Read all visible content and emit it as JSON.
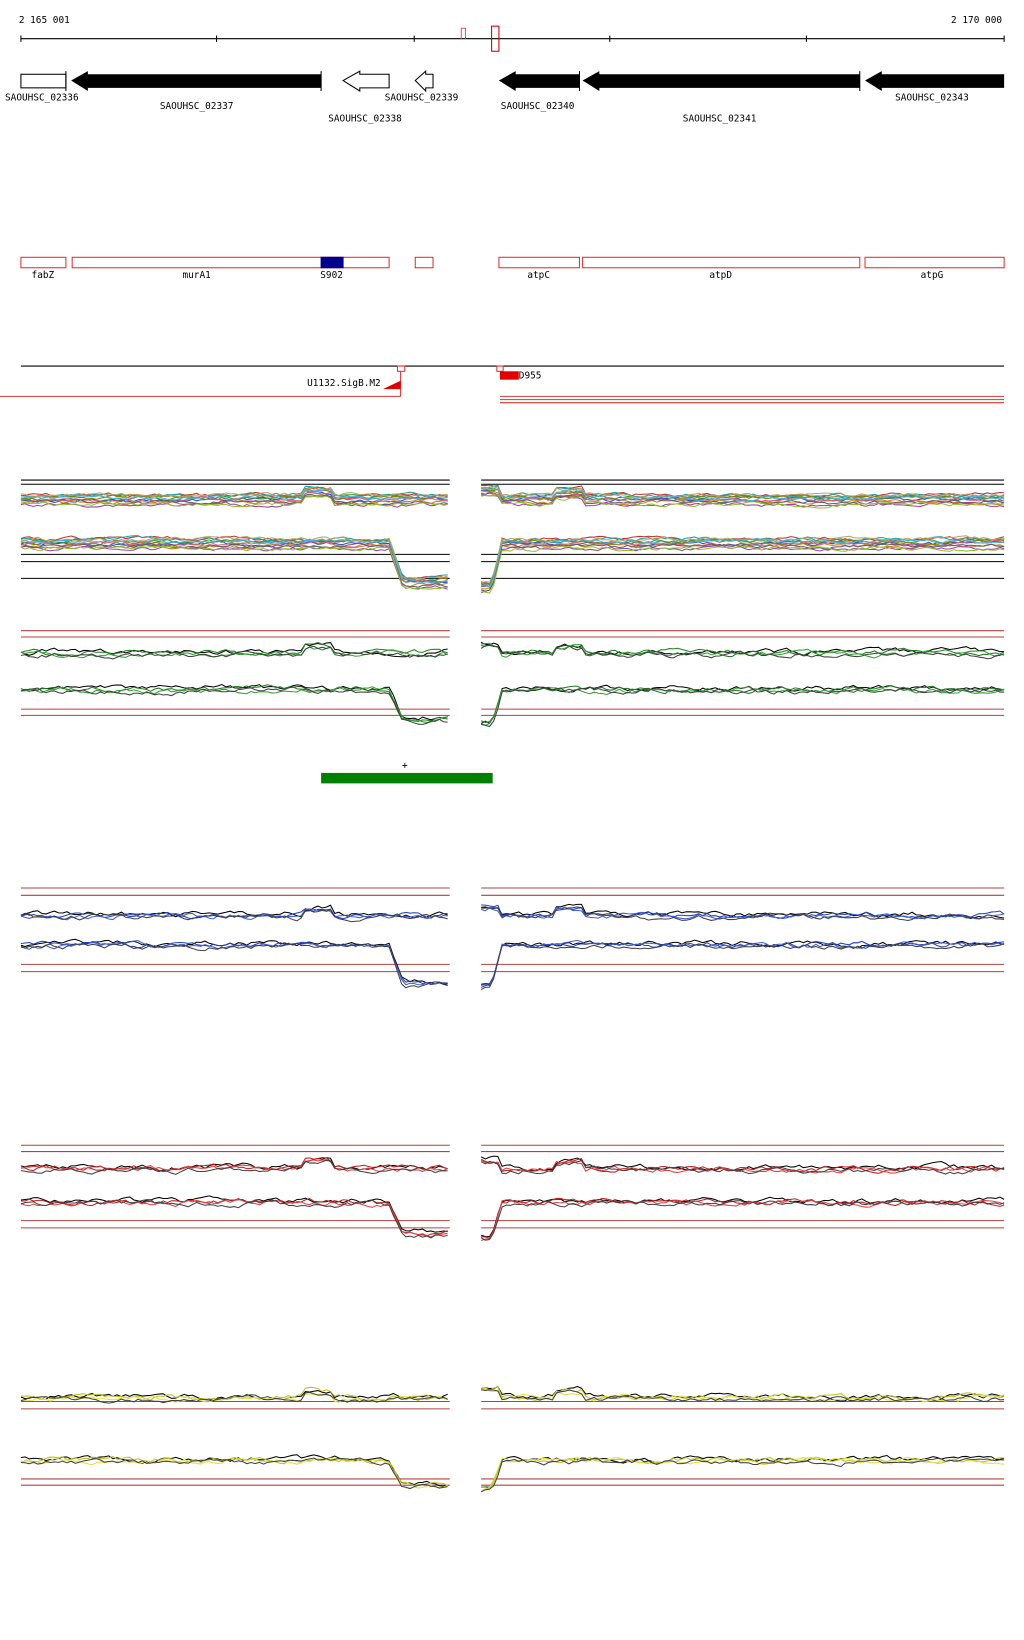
{
  "ruler": {
    "start": "2 165 001",
    "end": "2 170 000"
  },
  "genes": [
    "SAOUHSC_02336",
    "SAOUHSC_02337",
    "SAOUHSC_02338",
    "SAOUHSC_02339",
    "SAOUHSC_02340",
    "SAOUHSC_02341",
    "SAOUHSC_02343"
  ],
  "gene_names": [
    "fabZ",
    "murA1",
    "S902",
    "atpC",
    "atpD",
    "atpG"
  ],
  "features": [
    "U1132.SigB.M2",
    "D955"
  ],
  "strand": "+"
}
